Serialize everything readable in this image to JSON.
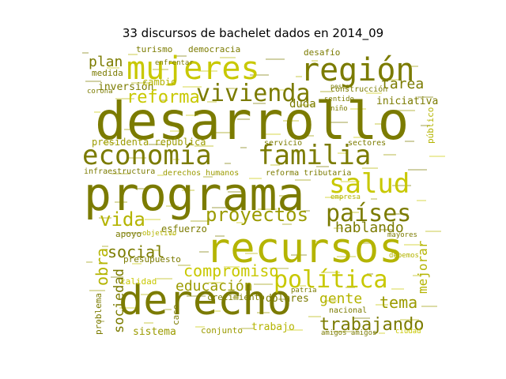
{
  "chart_data": {
    "type": "wordcloud",
    "title": "33 discursos de bachelet dados en 2014_09",
    "palette": [
      "#7b7b00",
      "#9b9b00",
      "#b4b400",
      "#c8c800"
    ],
    "words": [
      {
        "text": "desarrollo",
        "weight": 100,
        "color": "#7b7b00"
      },
      {
        "text": "programa",
        "weight": 92,
        "color": "#7b7b00"
      },
      {
        "text": "derecho",
        "weight": 80,
        "color": "#7b7b00"
      },
      {
        "text": "recursos",
        "weight": 74,
        "color": "#b4b400"
      },
      {
        "text": "mujeres",
        "weight": 62,
        "color": "#c8c800"
      },
      {
        "text": "región",
        "weight": 58,
        "color": "#7b7b00"
      },
      {
        "text": "economía",
        "weight": 55,
        "color": "#7b7b00"
      },
      {
        "text": "familia",
        "weight": 53,
        "color": "#7b7b00"
      },
      {
        "text": "salud",
        "weight": 50,
        "color": "#c8c800"
      },
      {
        "text": "vivienda",
        "weight": 48,
        "color": "#7b7b00"
      },
      {
        "text": "países",
        "weight": 46,
        "color": "#7b7b00"
      },
      {
        "text": "política",
        "weight": 44,
        "color": "#c8c800"
      },
      {
        "text": "proyectos",
        "weight": 40,
        "color": "#9b9b00"
      },
      {
        "text": "vida",
        "weight": 37,
        "color": "#b4b400"
      },
      {
        "text": "trabajando",
        "weight": 34,
        "color": "#7b7b00"
      },
      {
        "text": "reforma",
        "weight": 32,
        "color": "#c8c800"
      },
      {
        "text": "obra",
        "weight": 31,
        "color": "#b4b400"
      },
      {
        "text": "social",
        "weight": 31,
        "color": "#7b7b00"
      },
      {
        "text": "compromiso",
        "weight": 30,
        "color": "#c8c800"
      },
      {
        "text": "tema",
        "weight": 30,
        "color": "#9b9b00"
      },
      {
        "text": "hablando",
        "weight": 29,
        "color": "#7b7b00"
      },
      {
        "text": "educación",
        "weight": 28,
        "color": "#9b9b00"
      },
      {
        "text": "gente",
        "weight": 27,
        "color": "#b4b400"
      },
      {
        "text": "plan",
        "weight": 26,
        "color": "#7b7b00"
      },
      {
        "text": "tarea",
        "weight": 25,
        "color": "#7b7b00"
      },
      {
        "text": "sociedad",
        "weight": 24,
        "color": "#7b7b00"
      },
      {
        "text": "mejorar",
        "weight": 22,
        "color": "#b4b400"
      },
      {
        "text": "duda",
        "weight": 20,
        "color": "#7b7b00"
      },
      {
        "text": "iniciativa",
        "weight": 18,
        "color": "#7b7b00"
      },
      {
        "text": "inversión",
        "weight": 17,
        "color": "#7b7b00"
      },
      {
        "text": "cambio",
        "weight": 16,
        "color": "#b4b400"
      },
      {
        "text": "presidenta república",
        "weight": 16,
        "color": "#9b9b00"
      },
      {
        "text": "trabajo",
        "weight": 16,
        "color": "#b4b400"
      },
      {
        "text": "sistema",
        "weight": 16,
        "color": "#9b9b00"
      },
      {
        "text": "crecimiento",
        "weight": 15,
        "color": "#7b7b00"
      },
      {
        "text": "dólares",
        "weight": 15,
        "color": "#7b7b00"
      },
      {
        "text": "calidad",
        "weight": 15,
        "color": "#c8c800"
      },
      {
        "text": "presupuesto",
        "weight": 14,
        "color": "#7b7b00"
      },
      {
        "text": "esfuerzo",
        "weight": 14,
        "color": "#7b7b00"
      },
      {
        "text": "apoyo",
        "weight": 14,
        "color": "#7b7b00"
      },
      {
        "text": "turismo",
        "weight": 13,
        "color": "#7b7b00"
      },
      {
        "text": "democracia",
        "weight": 13,
        "color": "#7b7b00"
      },
      {
        "text": "desafío",
        "weight": 13,
        "color": "#7b7b00"
      },
      {
        "text": "medida",
        "weight": 13,
        "color": "#7b7b00"
      },
      {
        "text": "derechos humanos",
        "weight": 13,
        "color": "#9b9b00"
      },
      {
        "text": "reforma tributaria",
        "weight": 12,
        "color": "#7b7b00"
      },
      {
        "text": "infraestructura",
        "weight": 12,
        "color": "#7b7b00"
      },
      {
        "text": "construcción",
        "weight": 12,
        "color": "#7b7b00"
      },
      {
        "text": "sectores",
        "weight": 12,
        "color": "#7b7b00"
      },
      {
        "text": "servicio",
        "weight": 12,
        "color": "#7b7b00"
      },
      {
        "text": "nacional",
        "weight": 12,
        "color": "#7b7b00"
      },
      {
        "text": "conjunto",
        "weight": 12,
        "color": "#9b9b00"
      },
      {
        "text": "problema",
        "weight": 12,
        "color": "#7b7b00"
      },
      {
        "text": "público",
        "weight": 11,
        "color": "#b4b400"
      },
      {
        "text": "sentido",
        "weight": 11,
        "color": "#7b7b00"
      },
      {
        "text": "mayores",
        "weight": 11,
        "color": "#7b7b00"
      },
      {
        "text": "debemos",
        "weight": 11,
        "color": "#b4b400"
      },
      {
        "text": "objetivo",
        "weight": 10,
        "color": "#b4b400"
      },
      {
        "text": "enfrentar",
        "weight": 10,
        "color": "#7b7b00"
      },
      {
        "text": "amigos amigos",
        "weight": 10,
        "color": "#7b7b00"
      },
      {
        "text": "caso",
        "weight": 10,
        "color": "#7b7b00"
      },
      {
        "text": "ciudad",
        "weight": 9,
        "color": "#c8c800"
      },
      {
        "text": "patria",
        "weight": 9,
        "color": "#7b7b00"
      },
      {
        "text": "corona",
        "weight": 9,
        "color": "#7b7b00"
      },
      {
        "text": "niño",
        "weight": 8,
        "color": "#7b7b00"
      },
      {
        "text": "empresa",
        "weight": 8,
        "color": "#b4b400"
      },
      {
        "text": "pesca",
        "weight": 8,
        "color": "#7b7b00"
      }
    ]
  }
}
